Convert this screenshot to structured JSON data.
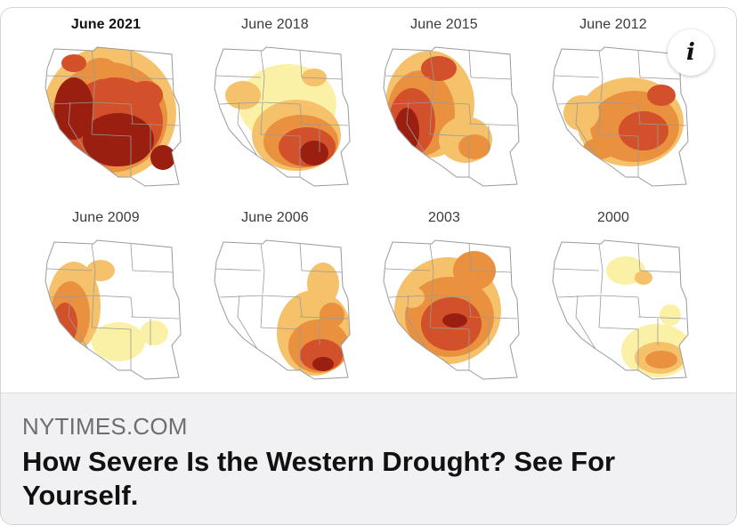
{
  "maps": [
    {
      "label": "June 2021",
      "bold": true,
      "severity": "extreme"
    },
    {
      "label": "June 2018",
      "bold": false,
      "severity": "severe-southwest"
    },
    {
      "label": "June 2015",
      "bold": false,
      "severity": "severe-west"
    },
    {
      "label": "June 2012",
      "bold": false,
      "severity": "moderate-east"
    },
    {
      "label": "June 2009",
      "bold": false,
      "severity": "moderate-west"
    },
    {
      "label": "June 2006",
      "bold": false,
      "severity": "severe-southeast"
    },
    {
      "label": "2003",
      "bold": false,
      "severity": "severe-central"
    },
    {
      "label": "2000",
      "bold": false,
      "severity": "light-southeast"
    }
  ],
  "colors": {
    "extreme": "#9b1f10",
    "severe": "#d2502a",
    "moderate": "#e9913f",
    "abnormal": "#f5c16a",
    "dry": "#fbf1a6",
    "none": "#ffffff",
    "border": "#9a9a9a"
  },
  "info_icon": "info-icon",
  "caption": {
    "source": "NYTIMES.COM",
    "headline": "How Severe Is the Western Drought? See For Yourself."
  }
}
